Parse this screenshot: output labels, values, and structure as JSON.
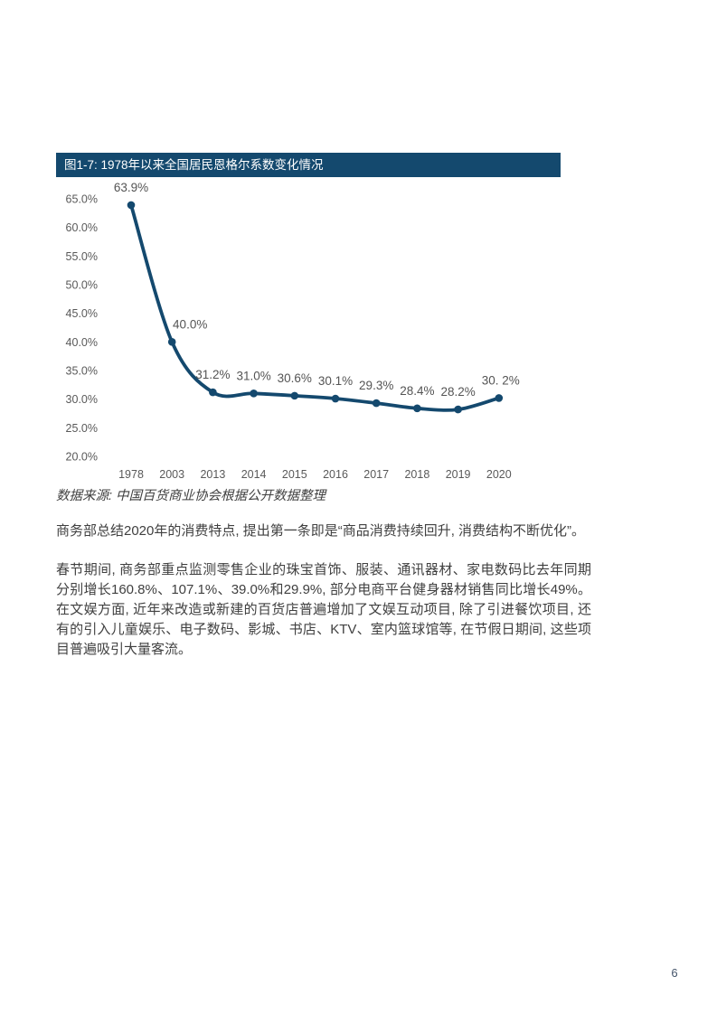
{
  "page": {
    "number": "6"
  },
  "figure": {
    "title": "图1-7: 1978年以来全国居民恩格尔系数变化情况",
    "source": "数据来源: 中国百货商业协会根据公开数据整理"
  },
  "chart_data": {
    "type": "line",
    "title": "图1-7: 1978年以来全国居民恩格尔系数变化情况",
    "categories": [
      "1978",
      "2003",
      "2013",
      "2014",
      "2015",
      "2016",
      "2017",
      "2018",
      "2019",
      "2020"
    ],
    "values": [
      63.9,
      40.0,
      31.2,
      31.0,
      30.6,
      30.1,
      29.3,
      28.4,
      28.2,
      30.2
    ],
    "point_labels": [
      "63.9%",
      "40.0%",
      "31.2%",
      "31.0%",
      "30.6%",
      "30.1%",
      "29.3%",
      "28.4%",
      "28.2%",
      "30. 2%"
    ],
    "y_ticks": [
      "65.0%",
      "60.0%",
      "55.0%",
      "50.0%",
      "45.0%",
      "40.0%",
      "35.0%",
      "30.0%",
      "25.0%",
      "20.0%"
    ],
    "ylim": [
      20,
      65
    ],
    "xlabel": "",
    "ylabel": "",
    "grid": false,
    "legend": "none",
    "line_color": "#14496E",
    "marker_color": "#14496E",
    "axis_label_color": "#595959",
    "point_label_color": "#545454",
    "title_bar_color": "#14496E"
  },
  "body": {
    "p1": "商务部总结2020年的消费特点, 提出第一条即是“商品消费持续回升, 消费结构不断优化”。",
    "p2": "春节期间, 商务部重点监测零售企业的珠宝首饰、服装、通讯器材、家电数码比去年同期分别增长160.8%、107.1%、39.0%和29.9%, 部分电商平台健身器材销售同比增长49%。在文娱方面, 近年来改造或新建的百货店普遍增加了文娱互动项目, 除了引进餐饮项目, 还有的引入儿童娱乐、电子数码、影城、书店、KTV、室内篮球馆等, 在节假日期间, 这些项目普遍吸引大量客流。"
  }
}
